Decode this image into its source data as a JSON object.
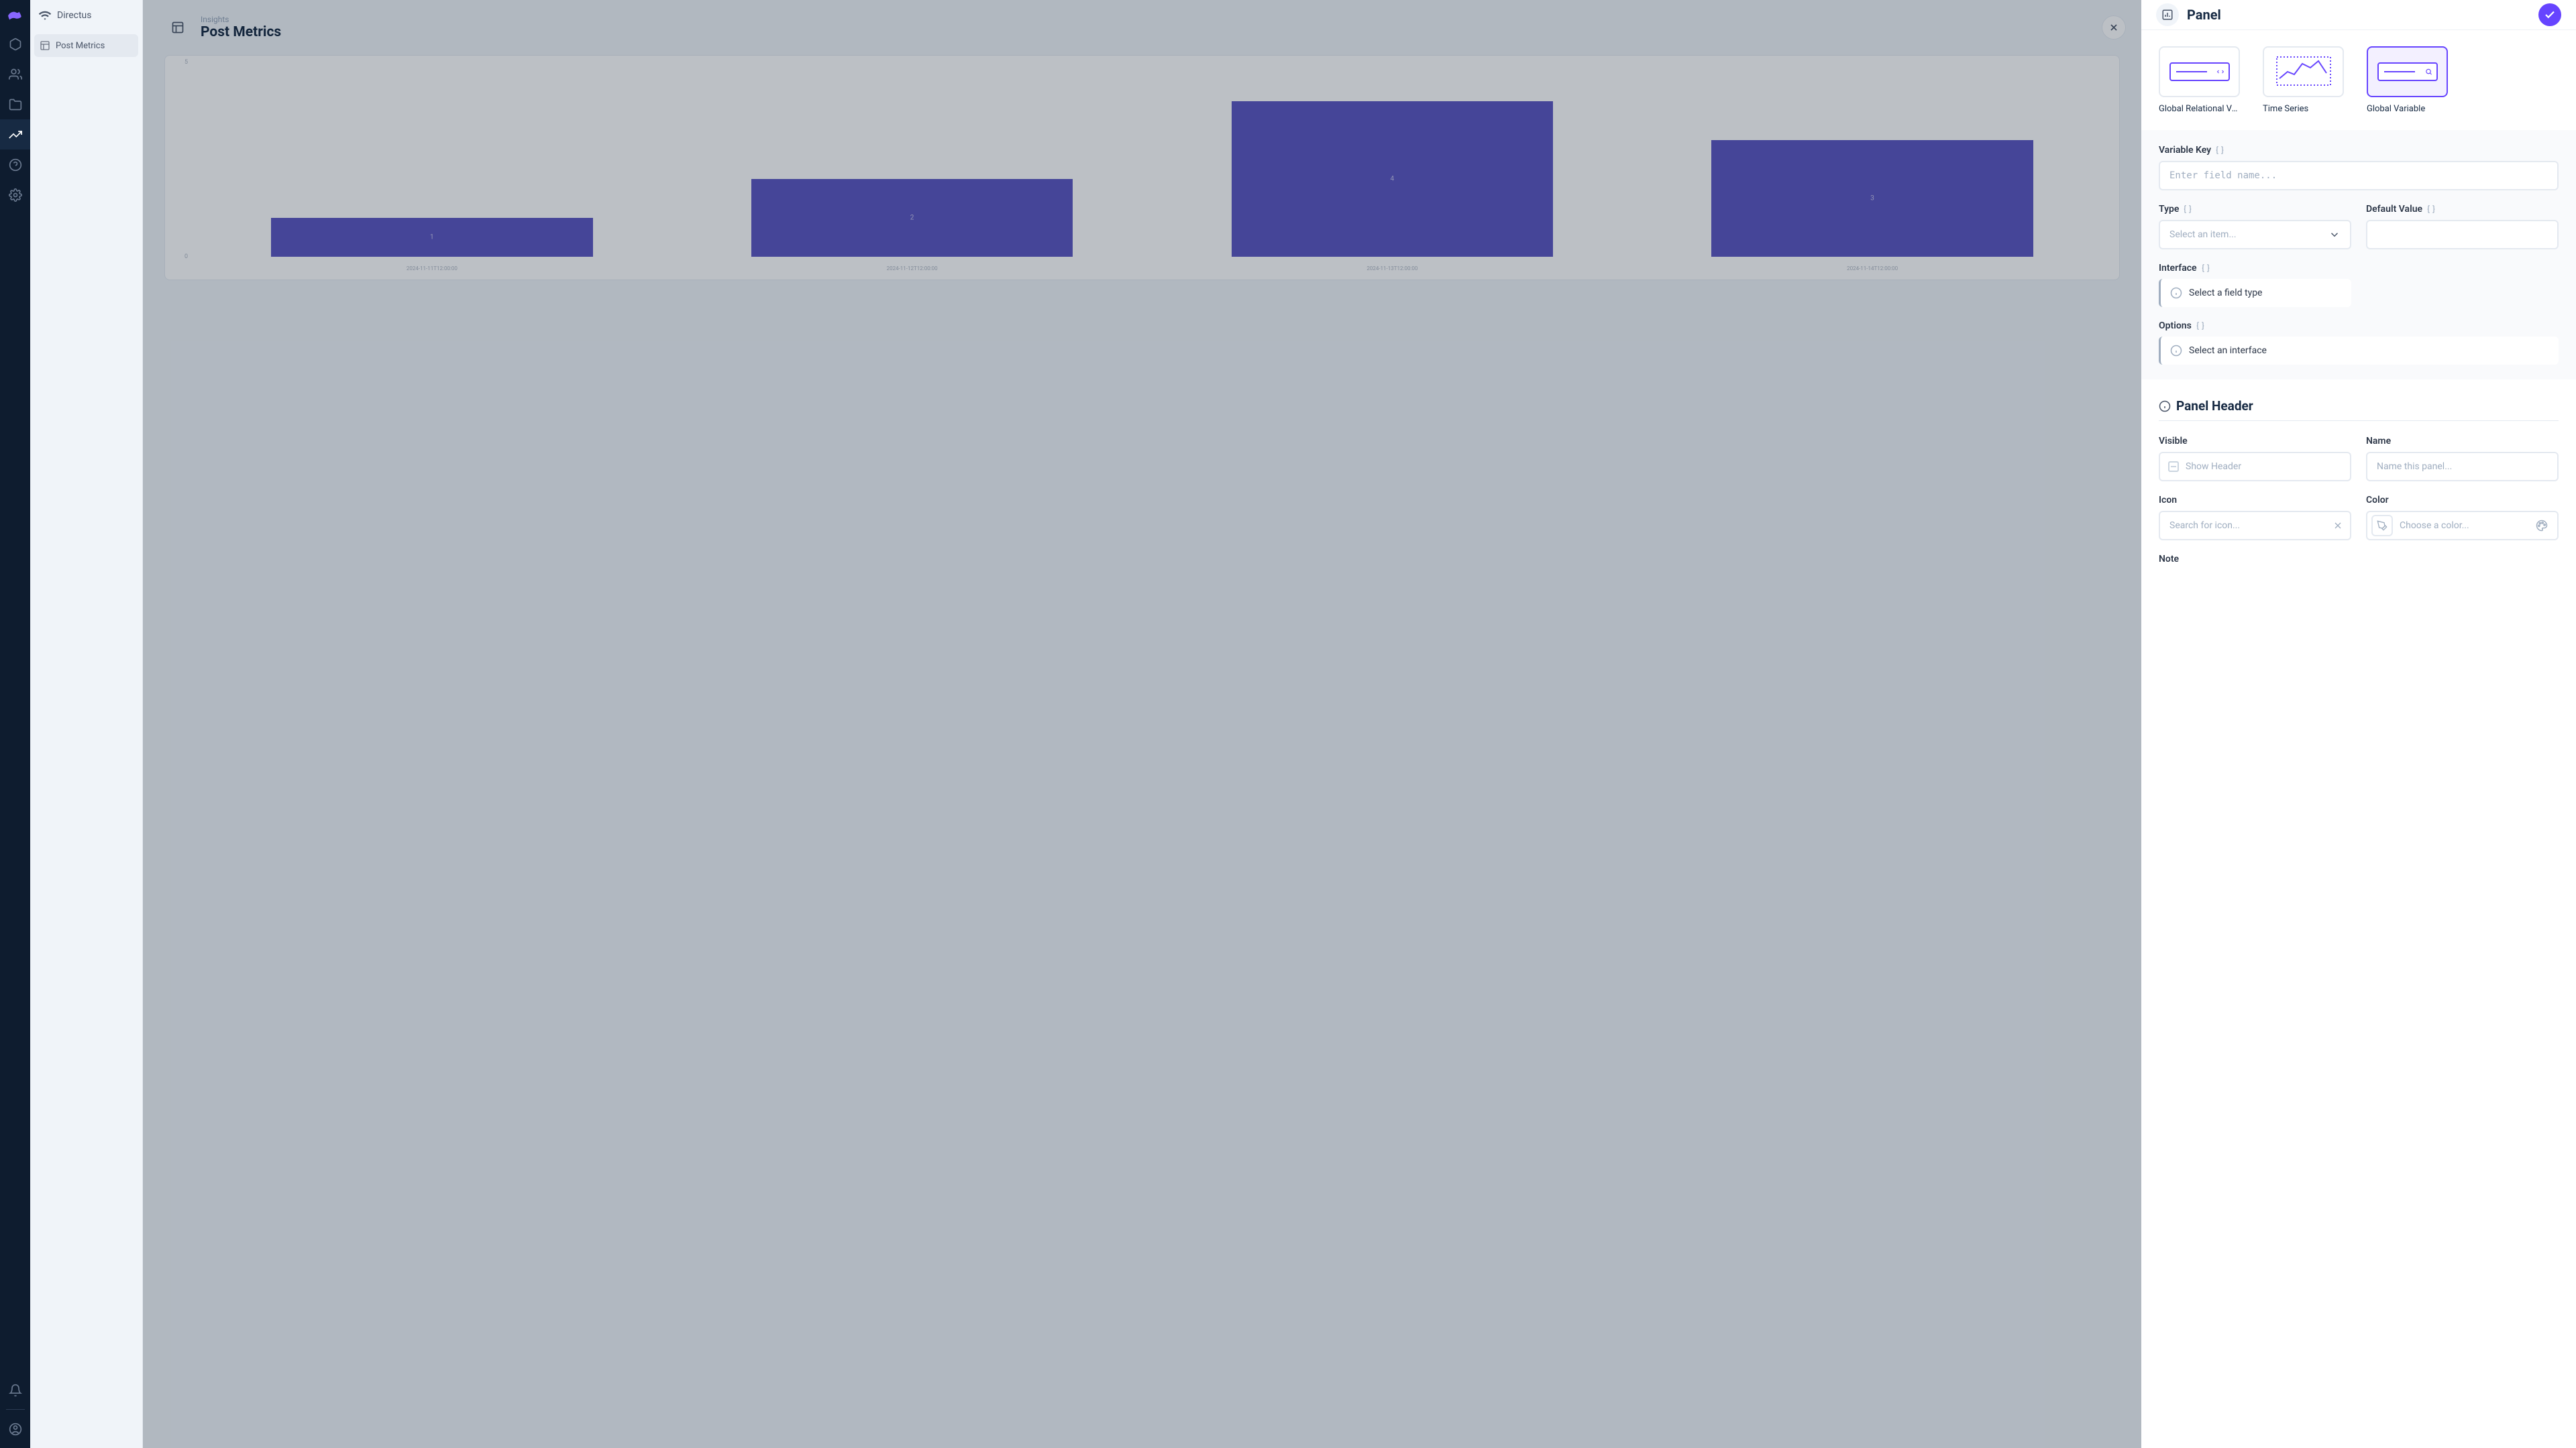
{
  "rail": {
    "logo_color": "#8866ff"
  },
  "module": {
    "brand": "Directus",
    "items": [
      {
        "label": "Post Metrics"
      }
    ]
  },
  "main": {
    "breadcrumb": "Insights",
    "title": "Post Metrics"
  },
  "chart": {
    "type": "bar",
    "y_max": 5,
    "y_ticks": [
      0,
      5
    ],
    "bar_color": "#5a55c1",
    "value_color": "#c7c4ea",
    "axis_label_color": "#b0b8c4",
    "background_color": "#ffffff",
    "border_color": "#e4e9f0",
    "bars": [
      {
        "x": "2024-11-11T12:00:00",
        "v": 1
      },
      {
        "x": "2024-11-12T12:00:00",
        "v": 2
      },
      {
        "x": "2024-11-13T12:00:00",
        "v": 4
      },
      {
        "x": "2024-11-14T12:00:00",
        "v": 3
      }
    ]
  },
  "drawer": {
    "title": "Panel",
    "types": [
      {
        "label": "Global Relational Varia…",
        "kind": "relational"
      },
      {
        "label": "Time Series",
        "kind": "timeseries"
      },
      {
        "label": "Global Variable",
        "kind": "variable",
        "selected": true
      }
    ],
    "fields": {
      "variable_key_label": "Variable Key",
      "variable_key_placeholder": "Enter field name...",
      "type_label": "Type",
      "type_placeholder": "Select an item...",
      "default_value_label": "Default Value",
      "interface_label": "Interface",
      "interface_notice": "Select a field type",
      "options_label": "Options",
      "options_notice": "Select an interface"
    },
    "panel_header": {
      "section_title": "Panel Header",
      "visible_label": "Visible",
      "visible_checkbox_label": "Show Header",
      "name_label": "Name",
      "name_placeholder": "Name this panel...",
      "icon_label": "Icon",
      "icon_placeholder": "Search for icon...",
      "color_label": "Color",
      "color_placeholder": "Choose a color...",
      "note_label": "Note"
    }
  },
  "colors": {
    "accent": "#6644ff",
    "rail_bg": "#0e1c2f",
    "text": "#172a43",
    "muted": "#a0aec0",
    "border": "#e4e9f0"
  }
}
